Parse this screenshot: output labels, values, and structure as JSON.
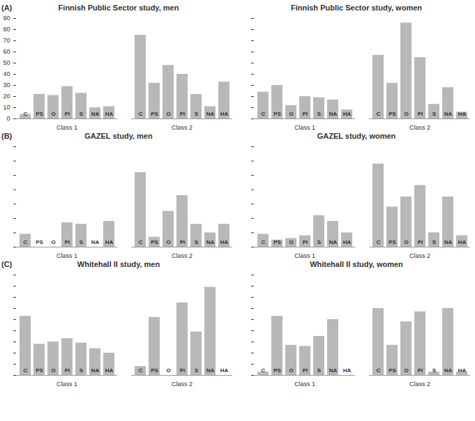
{
  "chart_data": [
    {
      "type": "bar",
      "title": "Finnish Public Sector study, men",
      "annotations": [
        "(A)"
      ],
      "categories": [
        "C",
        "PS",
        "O",
        "PI",
        "S",
        "NA",
        "HA"
      ],
      "series": [
        {
          "name": "Class 1",
          "values": [
            4,
            22,
            21,
            29,
            23,
            10,
            11
          ]
        },
        {
          "name": "Class 2",
          "values": [
            75,
            32,
            48,
            40,
            22,
            11,
            33
          ]
        }
      ],
      "color": "#b8b8b8",
      "ylim": [
        0,
        90
      ],
      "yticks": [
        0,
        10,
        20,
        30,
        40,
        50,
        60,
        70,
        80,
        90
      ],
      "tick_labels": "y",
      "data_labels": false
    },
    {
      "type": "bar",
      "title": "Finnish Public Sector study, women",
      "categories": [
        "C",
        "PS",
        "O",
        "PI",
        "S",
        "NA",
        "HA"
      ],
      "series": [
        {
          "name": "Class 1",
          "values": [
            24,
            30,
            12,
            20,
            19,
            17,
            8
          ]
        },
        {
          "name": "Class 2",
          "values": [
            57,
            32,
            86,
            55,
            13,
            28,
            6
          ]
        }
      ],
      "color": "#b8b8b8",
      "ylim": [
        0,
        90
      ],
      "yticks": [
        0,
        10,
        20,
        30,
        40,
        50,
        60,
        70,
        80,
        90
      ],
      "tick_labels": false,
      "data_labels": false
    },
    {
      "type": "bar",
      "title": "GAZEL study, men",
      "annotations": [
        "(B)"
      ],
      "categories": [
        "C",
        "PS",
        "O",
        "PI",
        "S",
        "NA",
        "HA"
      ],
      "series": [
        {
          "name": "Class 1",
          "values": [
            9,
            0,
            0,
            17,
            16,
            0,
            18
          ]
        },
        {
          "name": "Class 2",
          "values": [
            52,
            7,
            25,
            36,
            16,
            10,
            16
          ]
        }
      ],
      "color": "#b8b8b8",
      "ylim": [
        0,
        70
      ],
      "yticks": [
        0,
        10,
        20,
        30,
        40,
        50,
        60,
        70
      ],
      "tick_labels": false,
      "data_labels": false
    },
    {
      "type": "bar",
      "title": "GAZEL study, women",
      "categories": [
        "C",
        "PS",
        "O",
        "PI",
        "S",
        "NA",
        "HA"
      ],
      "series": [
        {
          "name": "Class 1",
          "values": [
            9,
            5,
            6,
            8,
            22,
            18,
            10
          ]
        },
        {
          "name": "Class 2",
          "values": [
            58,
            28,
            35,
            43,
            10,
            35,
            8
          ]
        }
      ],
      "color": "#b8b8b8",
      "ylim": [
        0,
        70
      ],
      "yticks": [
        0,
        10,
        20,
        30,
        40,
        50,
        60,
        70
      ],
      "tick_labels": false,
      "data_labels": false
    },
    {
      "type": "bar",
      "title": "Whitehall II study, men",
      "annotations": [
        "(C)"
      ],
      "categories": [
        "C",
        "PS",
        "O",
        "PI",
        "S",
        "NA",
        "HA"
      ],
      "series": [
        {
          "name": "Class 1",
          "values": [
            53,
            28,
            30,
            33,
            29,
            24,
            20
          ]
        },
        {
          "name": "Class 2",
          "values": [
            8,
            52,
            0,
            65,
            39,
            79,
            0
          ]
        }
      ],
      "color": "#b8b8b8",
      "ylim": [
        0,
        90
      ],
      "yticks": [
        0,
        10,
        20,
        30,
        40,
        50,
        60,
        70,
        80,
        90
      ],
      "tick_labels": false,
      "data_labels": false
    },
    {
      "type": "bar",
      "title": "Whitehall II study, women",
      "categories": [
        "C",
        "PS",
        "O",
        "PI",
        "S",
        "NA",
        "HA"
      ],
      "series": [
        {
          "name": "Class 1",
          "values": [
            3,
            53,
            27,
            26,
            35,
            50,
            0
          ]
        },
        {
          "name": "Class 2",
          "values": [
            60,
            27,
            48,
            57,
            3,
            60,
            3
          ]
        }
      ],
      "color": "#b8b8b8",
      "ylim": [
        0,
        90
      ],
      "yticks": [
        0,
        10,
        20,
        30,
        40,
        50,
        60,
        70,
        80,
        90
      ],
      "tick_labels": false,
      "data_labels": false
    }
  ]
}
